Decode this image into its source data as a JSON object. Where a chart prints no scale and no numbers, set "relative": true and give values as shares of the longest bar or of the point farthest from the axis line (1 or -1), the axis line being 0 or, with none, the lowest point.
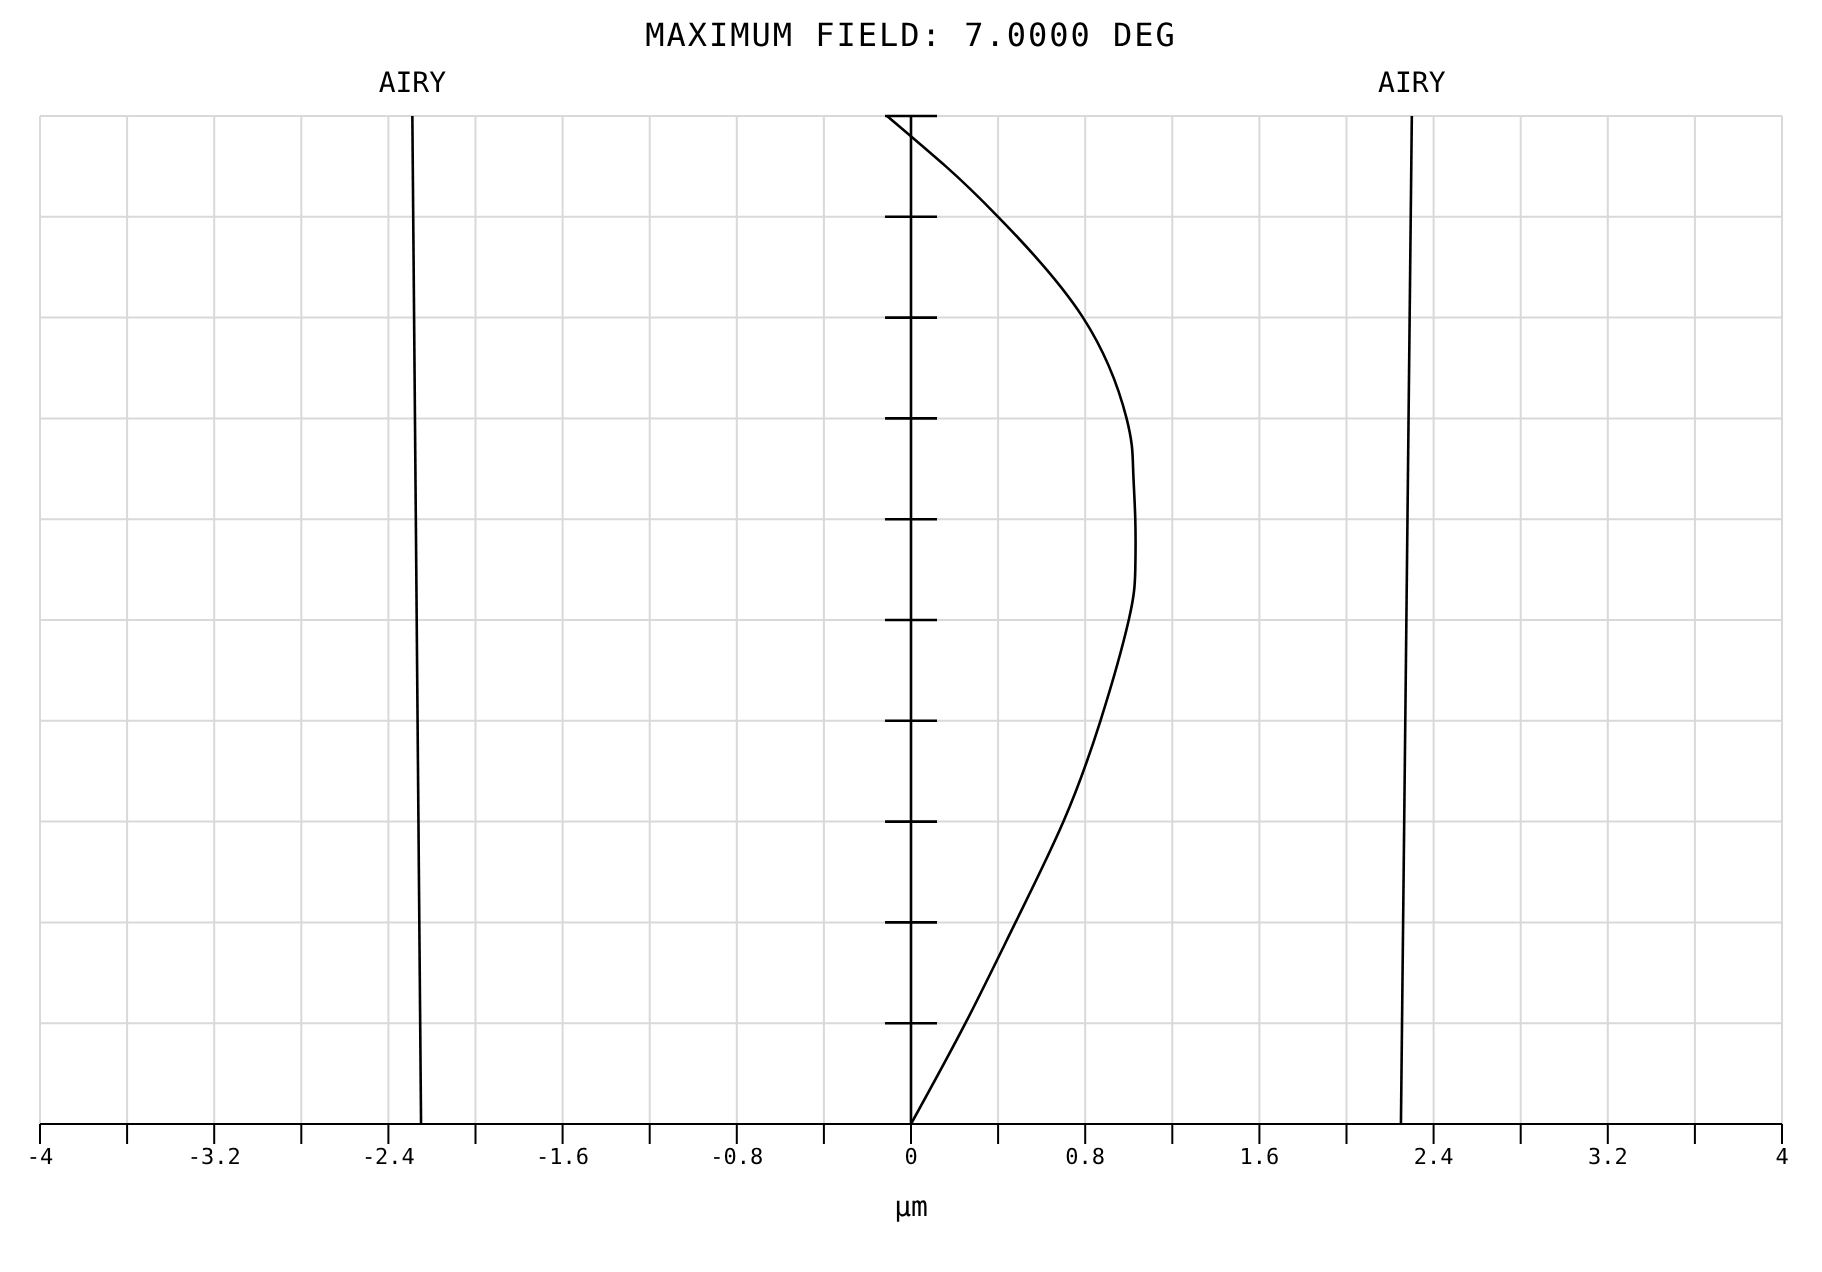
{
  "chart_data": {
    "type": "line",
    "title": "MAXIMUM FIELD: 7.0000 DEG",
    "xlabel": "μm",
    "xlim": [
      -4,
      4
    ],
    "xticks": [
      -4,
      {
        "value": -3.6,
        "label": null
      },
      -3.2,
      {
        "value": -2.8,
        "label": null
      },
      -2.4,
      {
        "value": -2.0,
        "label": null
      },
      -1.6,
      {
        "value": -1.2,
        "label": null
      },
      -0.8,
      {
        "value": -0.4,
        "label": null
      },
      0,
      {
        "value": 0.4,
        "label": null
      },
      0.8,
      {
        "value": 1.2,
        "label": null
      },
      1.6,
      {
        "value": 2.0,
        "label": null
      },
      2.4,
      {
        "value": 2.8,
        "label": null
      },
      3.2,
      {
        "value": 3.6,
        "label": null
      },
      4
    ],
    "relative": true,
    "tick_labels": "x",
    "grid": true,
    "marker": "none",
    "line_style": "solid",
    "ref_lines": [
      {
        "axis": "x",
        "value": 0,
        "color": "#000000"
      }
    ],
    "series": [
      {
        "color": "#000000",
        "x": [
          0,
          0.25,
          0.48,
          0.7,
          0.87,
          1.0,
          1.03,
          1.03,
          1.02,
          0.99,
          0.79,
          0.4,
          0.16,
          -0.11
        ],
        "values": [
          0,
          0.1,
          0.2,
          0.3,
          0.4,
          0.5,
          0.55,
          0.6,
          0.65,
          0.7,
          0.8,
          0.9,
          0.95,
          1
        ]
      },
      {
        "name": "AIRY",
        "color": "#000000",
        "x": [
          -2.25,
          -2.29
        ],
        "values": [
          0,
          1
        ]
      },
      {
        "name": "AIRY",
        "color": "#000000",
        "x": [
          2.25,
          2.3
        ],
        "values": [
          0,
          1
        ]
      }
    ]
  }
}
